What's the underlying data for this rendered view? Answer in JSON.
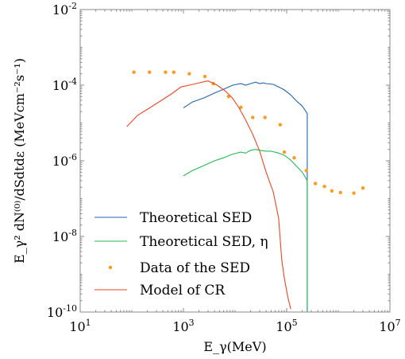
{
  "chart_data": {
    "type": "line",
    "xlabel": "E_γ(MeV)",
    "ylabel": "E_γ² dN⁽⁰⁾/dSdtdε  (MeVcm⁻²s⁻¹)",
    "xscale": "log",
    "yscale": "log",
    "xlim": [
      10,
      10000000
    ],
    "ylim": [
      1e-10,
      0.01
    ],
    "x_tick_labels": [
      "10^1",
      "10^3",
      "10^5",
      "10^7"
    ],
    "y_tick_labels": [
      "10^-2",
      "10^-4",
      "10^-6",
      "10^-8",
      "10^-10"
    ],
    "grid": false,
    "legend_position": "lower-left",
    "series": [
      {
        "name": "Theoretical SED",
        "kind": "line",
        "color": "#2166ac",
        "x": [
          1000,
          1500,
          2500,
          4000,
          6000,
          9000,
          13000,
          16000,
          20000,
          25000,
          30000,
          35000,
          40000,
          55000,
          70000,
          90000,
          120000,
          150000,
          200000,
          250000,
          250000
        ],
        "y": [
          2.5e-05,
          3.6e-05,
          4.6e-05,
          6.2e-05,
          7.8e-05,
          0.0001,
          0.00011,
          0.0001,
          0.00011,
          0.00012,
          0.00011,
          0.000115,
          0.00011,
          0.000105,
          9e-05,
          7.5e-05,
          5.5e-05,
          4e-05,
          2.8e-05,
          1.8e-05,
          1e-10
        ]
      },
      {
        "name": "Theoretical SED, η",
        "kind": "line",
        "color": "#22bb55",
        "x": [
          1000,
          1500,
          2500,
          4000,
          6000,
          9000,
          13000,
          16000,
          20000,
          25000,
          30000,
          40000,
          50000,
          70000,
          90000,
          120000,
          150000,
          200000,
          250000,
          250000
        ],
        "y": [
          4e-07,
          5.5e-07,
          7.5e-07,
          1e-06,
          1.2e-06,
          1.5e-06,
          1.7e-06,
          1.6e-06,
          1.9e-06,
          2e-06,
          1.9e-06,
          1.8e-06,
          1.8e-06,
          1.6e-06,
          1.4e-06,
          1.05e-06,
          7.5e-07,
          5e-07,
          3e-07,
          1e-10
        ]
      },
      {
        "name": "Data of the SED",
        "kind": "scatter",
        "color": "#ff9a1a",
        "x": [
          110,
          220,
          450,
          650,
          1300,
          2600,
          3800,
          7500,
          13000,
          22000,
          38000,
          75000,
          90000,
          140000,
          240000,
          360000,
          540000,
          750000,
          1100000,
          2000000,
          3000000
        ],
        "y": [
          0.00022,
          0.00022,
          0.00022,
          0.00022,
          0.0002,
          0.00017,
          0.00011,
          5e-05,
          2.6e-05,
          1.4e-05,
          1.4e-05,
          9e-06,
          1.7e-06,
          1.2e-06,
          5.5e-07,
          2.5e-07,
          2.1e-07,
          1.6e-07,
          1.45e-07,
          1.4e-07,
          1.9e-07
        ]
      },
      {
        "name": "Model of CR",
        "kind": "line",
        "color": "#ee4422",
        "x": [
          80,
          130,
          220,
          380,
          600,
          900,
          1300,
          2000,
          3000,
          4500,
          6500,
          9000,
          12000,
          16000,
          22000,
          30000,
          40000,
          55000,
          70000,
          80000,
          90000,
          105000,
          120000
        ],
        "y": [
          8e-06,
          1.6e-05,
          2.5e-05,
          4e-05,
          6e-05,
          9e-05,
          0.0001,
          0.000115,
          0.00013,
          0.0001,
          7e-05,
          4.5e-05,
          2.5e-05,
          1.2e-05,
          5e-06,
          1.8e-06,
          5e-07,
          1.5e-07,
          3e-08,
          2.5e-09,
          8e-10,
          2.5e-10,
          1.2e-10
        ]
      }
    ]
  }
}
